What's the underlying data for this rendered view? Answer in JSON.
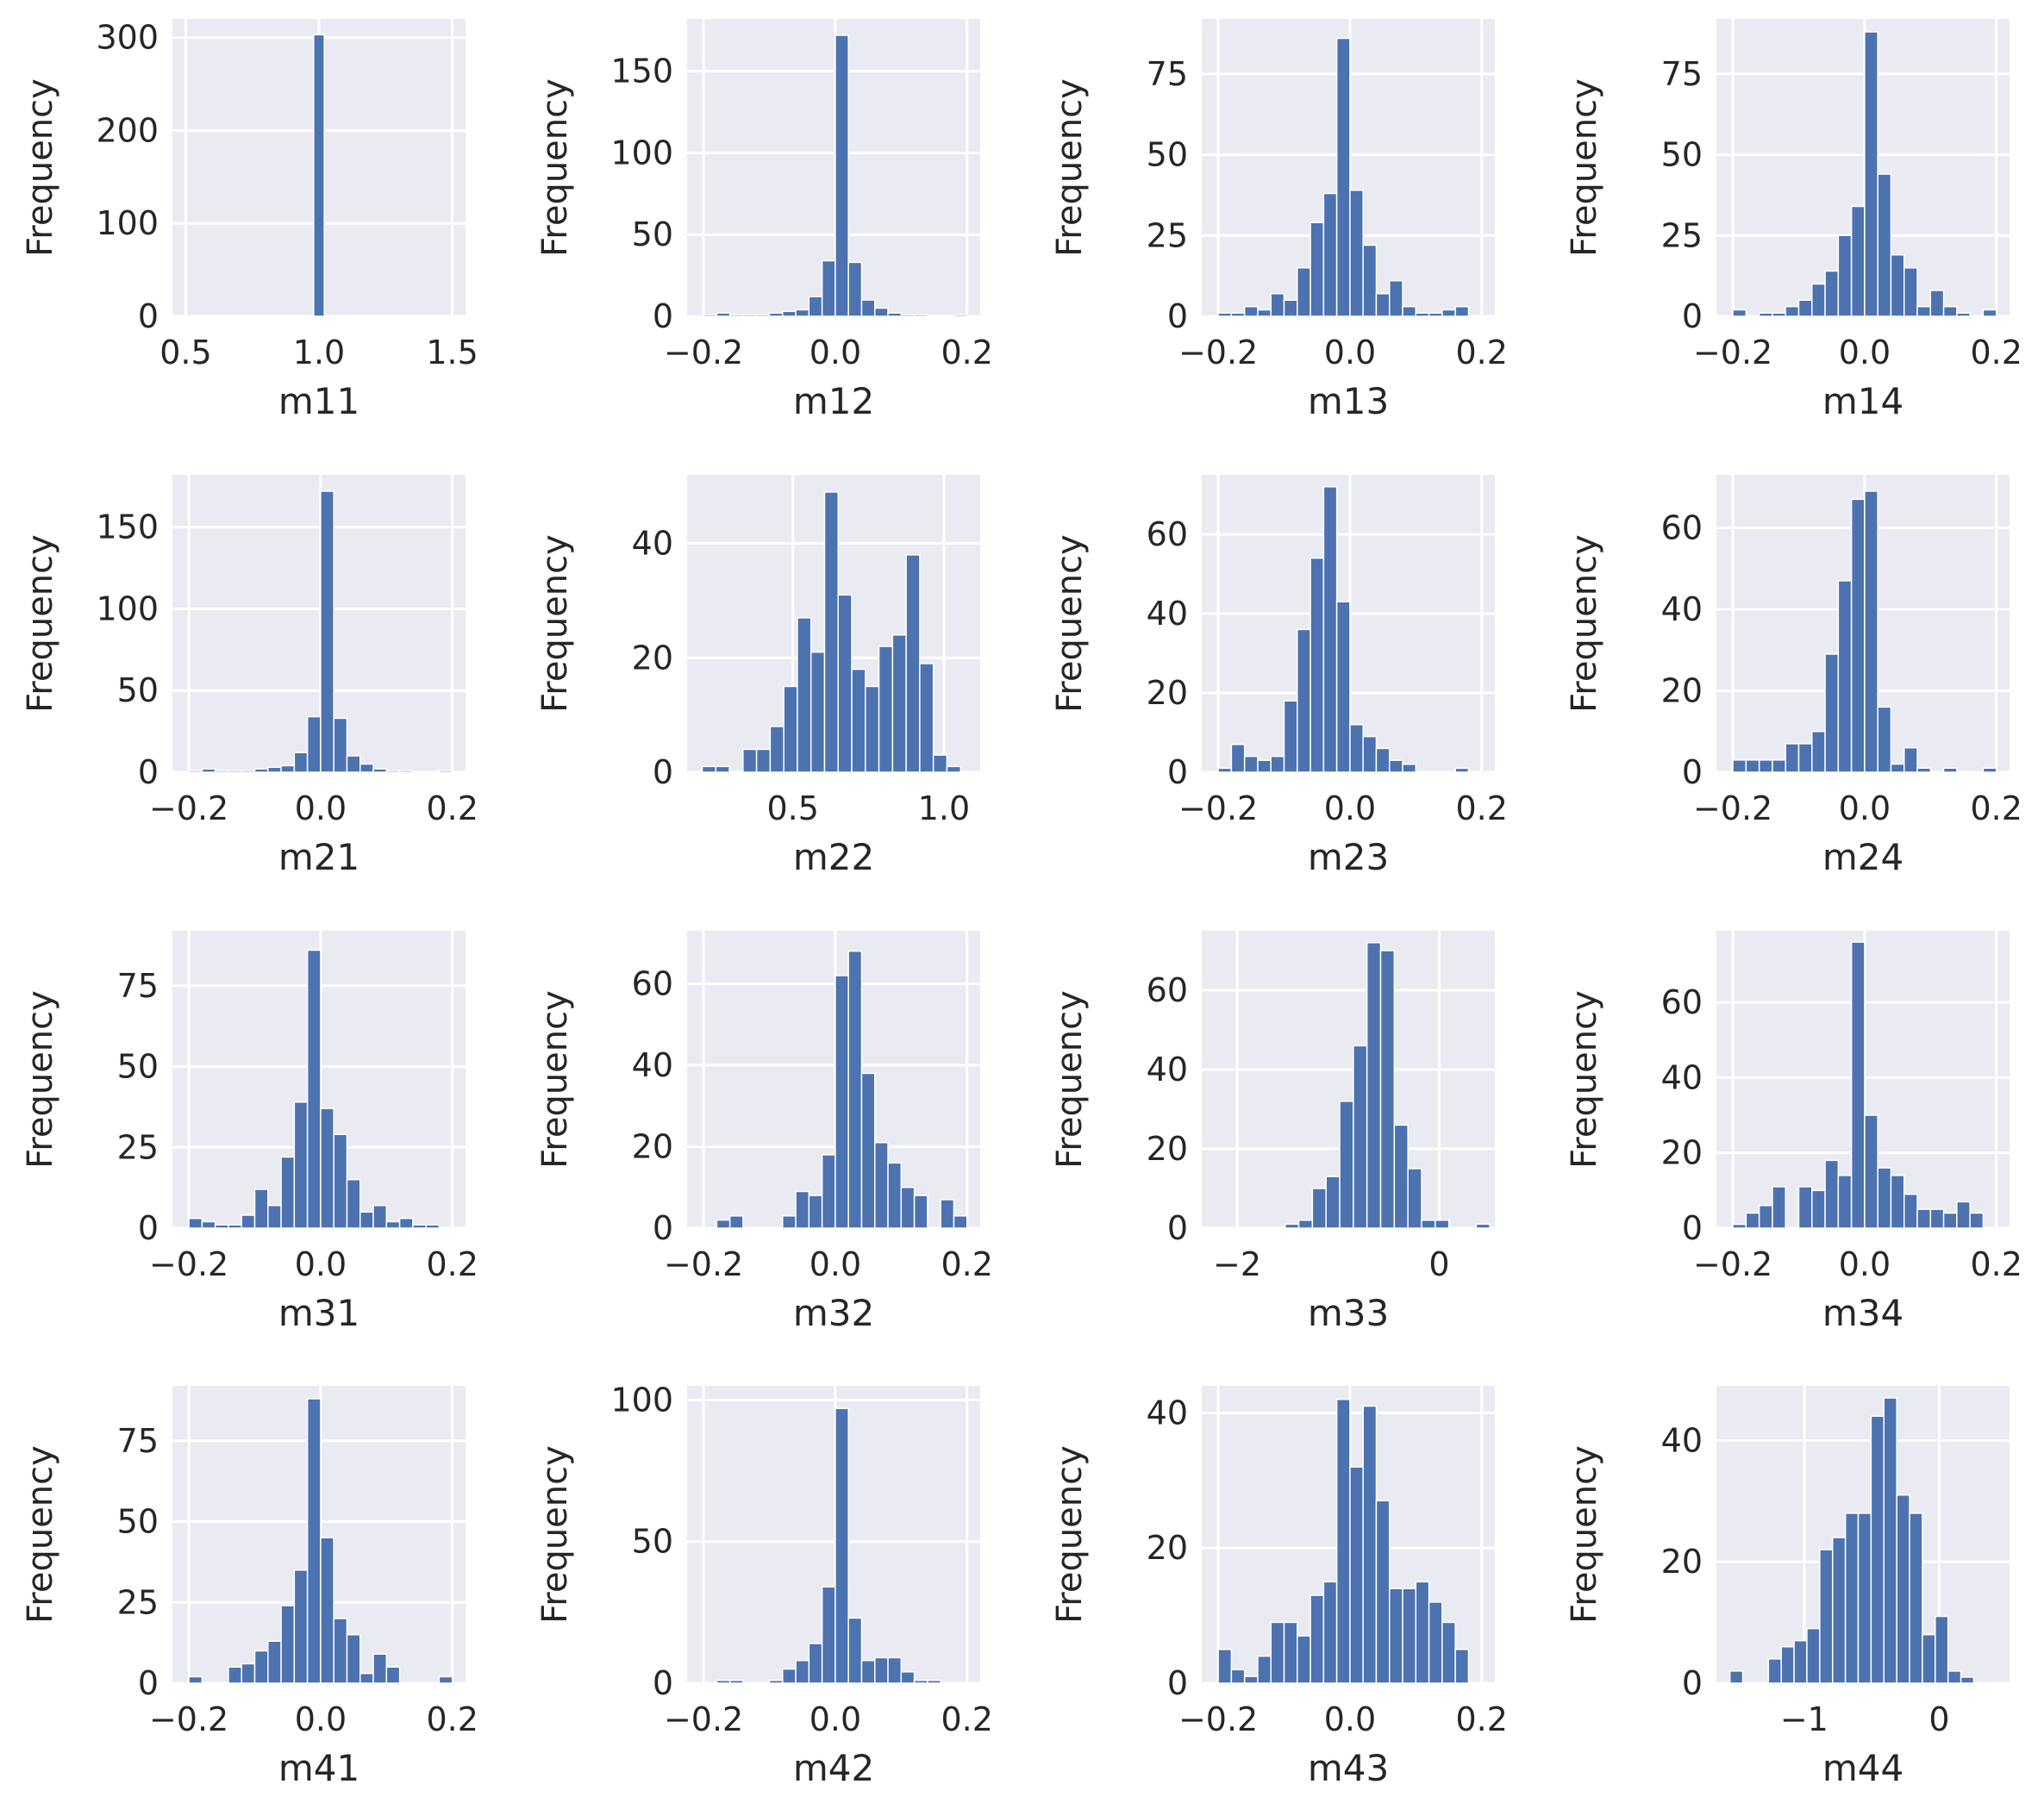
{
  "chart_data": [
    {
      "type": "bar",
      "xlabel": "m11",
      "ylabel": "Frequency",
      "xlim": [
        0.45,
        1.55
      ],
      "ylim": [
        0,
        320
      ],
      "xticks": [
        {
          "v": 0.5,
          "t": "0.5"
        },
        {
          "v": 1.0,
          "t": "1.0"
        },
        {
          "v": 1.5,
          "t": "1.5"
        }
      ],
      "yticks": [
        {
          "v": 0,
          "t": "0"
        },
        {
          "v": 100,
          "t": "100"
        },
        {
          "v": 200,
          "t": "200"
        },
        {
          "v": 300,
          "t": "300"
        }
      ],
      "bin_edges": [
        0.98,
        1.02
      ],
      "values": [
        303
      ]
    },
    {
      "type": "bar",
      "xlabel": "m12",
      "ylabel": "Frequency",
      "xlim": [
        -0.225,
        0.22
      ],
      "ylim": [
        0,
        182
      ],
      "xticks": [
        {
          "v": -0.2,
          "t": "−0.2"
        },
        {
          "v": 0.0,
          "t": "0.0"
        },
        {
          "v": 0.2,
          "t": "0.2"
        }
      ],
      "yticks": [
        {
          "v": 0,
          "t": "0"
        },
        {
          "v": 50,
          "t": "50"
        },
        {
          "v": 100,
          "t": "100"
        },
        {
          "v": 150,
          "t": "150"
        }
      ],
      "bin_edges": [
        -0.2,
        -0.18,
        -0.16,
        -0.14,
        -0.12,
        -0.1,
        -0.08,
        -0.06,
        -0.04,
        -0.02,
        0.0,
        0.02,
        0.04,
        0.06,
        0.08,
        0.1,
        0.12,
        0.14,
        0.16,
        0.18,
        0.2
      ],
      "values": [
        1,
        2,
        1,
        1,
        1,
        2,
        3,
        4,
        12,
        34,
        172,
        33,
        10,
        5,
        2,
        1,
        1,
        0,
        0,
        1
      ]
    },
    {
      "type": "bar",
      "xlabel": "m13",
      "ylabel": "Frequency",
      "xlim": [
        -0.225,
        0.22
      ],
      "ylim": [
        0,
        92
      ],
      "xticks": [
        {
          "v": -0.2,
          "t": "−0.2"
        },
        {
          "v": 0.0,
          "t": "0.0"
        },
        {
          "v": 0.2,
          "t": "0.2"
        }
      ],
      "yticks": [
        {
          "v": 0,
          "t": "0"
        },
        {
          "v": 25,
          "t": "25"
        },
        {
          "v": 50,
          "t": "50"
        },
        {
          "v": 75,
          "t": "75"
        }
      ],
      "bin_edges": [
        -0.2,
        -0.18,
        -0.16,
        -0.14,
        -0.12,
        -0.1,
        -0.08,
        -0.06,
        -0.04,
        -0.02,
        0.0,
        0.02,
        0.04,
        0.06,
        0.08,
        0.1,
        0.12,
        0.14,
        0.16,
        0.18,
        0.2
      ],
      "values": [
        1,
        1,
        3,
        2,
        7,
        5,
        15,
        29,
        38,
        86,
        39,
        22,
        7,
        11,
        3,
        1,
        1,
        2,
        3,
        0
      ]
    },
    {
      "type": "bar",
      "xlabel": "m14",
      "ylabel": "Frequency",
      "xlim": [
        -0.225,
        0.22
      ],
      "ylim": [
        0,
        92
      ],
      "xticks": [
        {
          "v": -0.2,
          "t": "−0.2"
        },
        {
          "v": 0.0,
          "t": "0.0"
        },
        {
          "v": 0.2,
          "t": "0.2"
        }
      ],
      "yticks": [
        {
          "v": 0,
          "t": "0"
        },
        {
          "v": 25,
          "t": "25"
        },
        {
          "v": 50,
          "t": "50"
        },
        {
          "v": 75,
          "t": "75"
        }
      ],
      "bin_edges": [
        -0.2,
        -0.18,
        -0.16,
        -0.14,
        -0.12,
        -0.1,
        -0.08,
        -0.06,
        -0.04,
        -0.02,
        0.0,
        0.02,
        0.04,
        0.06,
        0.08,
        0.1,
        0.12,
        0.14,
        0.16,
        0.18,
        0.2
      ],
      "values": [
        2,
        0,
        1,
        1,
        3,
        5,
        10,
        14,
        25,
        34,
        88,
        44,
        19,
        15,
        3,
        8,
        3,
        1,
        0,
        2
      ]
    },
    {
      "type": "bar",
      "xlabel": "m21",
      "ylabel": "Frequency",
      "xlim": [
        -0.225,
        0.22
      ],
      "ylim": [
        0,
        182
      ],
      "xticks": [
        {
          "v": -0.2,
          "t": "−0.2"
        },
        {
          "v": 0.0,
          "t": "0.0"
        },
        {
          "v": 0.2,
          "t": "0.2"
        }
      ],
      "yticks": [
        {
          "v": 0,
          "t": "0"
        },
        {
          "v": 50,
          "t": "50"
        },
        {
          "v": 100,
          "t": "100"
        },
        {
          "v": 150,
          "t": "150"
        }
      ],
      "bin_edges": [
        -0.2,
        -0.18,
        -0.16,
        -0.14,
        -0.12,
        -0.1,
        -0.08,
        -0.06,
        -0.04,
        -0.02,
        0.0,
        0.02,
        0.04,
        0.06,
        0.08,
        0.1,
        0.12,
        0.14,
        0.16,
        0.18,
        0.2
      ],
      "values": [
        1,
        2,
        1,
        1,
        1,
        2,
        3,
        4,
        12,
        34,
        172,
        33,
        10,
        5,
        2,
        1,
        1,
        0,
        0,
        1
      ]
    },
    {
      "type": "bar",
      "xlabel": "m22",
      "ylabel": "Frequency",
      "xlim": [
        0.15,
        1.12
      ],
      "ylim": [
        0,
        52
      ],
      "xticks": [
        {
          "v": 0.5,
          "t": "0.5"
        },
        {
          "v": 1.0,
          "t": "1.0"
        }
      ],
      "yticks": [
        {
          "v": 0,
          "t": "0"
        },
        {
          "v": 20,
          "t": "20"
        },
        {
          "v": 40,
          "t": "40"
        }
      ],
      "bin_edges": [
        0.2,
        0.245,
        0.29,
        0.335,
        0.38,
        0.425,
        0.47,
        0.515,
        0.56,
        0.605,
        0.65,
        0.695,
        0.74,
        0.785,
        0.83,
        0.875,
        0.92,
        0.965,
        1.01,
        1.055,
        1.1
      ],
      "values": [
        1,
        1,
        0,
        4,
        4,
        8,
        15,
        27,
        21,
        49,
        31,
        18,
        15,
        22,
        24,
        38,
        19,
        3,
        1,
        0
      ]
    },
    {
      "type": "bar",
      "xlabel": "m23",
      "ylabel": "Frequency",
      "xlim": [
        -0.225,
        0.22
      ],
      "ylim": [
        0,
        75
      ],
      "xticks": [
        {
          "v": -0.2,
          "t": "−0.2"
        },
        {
          "v": 0.0,
          "t": "0.0"
        },
        {
          "v": 0.2,
          "t": "0.2"
        }
      ],
      "yticks": [
        {
          "v": 0,
          "t": "0"
        },
        {
          "v": 20,
          "t": "20"
        },
        {
          "v": 40,
          "t": "40"
        },
        {
          "v": 60,
          "t": "60"
        }
      ],
      "bin_edges": [
        -0.2,
        -0.18,
        -0.16,
        -0.14,
        -0.12,
        -0.1,
        -0.08,
        -0.06,
        -0.04,
        -0.02,
        0.0,
        0.02,
        0.04,
        0.06,
        0.08,
        0.1,
        0.12,
        0.14,
        0.16,
        0.18,
        0.2
      ],
      "values": [
        1,
        7,
        4,
        3,
        4,
        18,
        36,
        54,
        72,
        43,
        12,
        9,
        6,
        3,
        2,
        0,
        0,
        0,
        1,
        0
      ]
    },
    {
      "type": "bar",
      "xlabel": "m24",
      "ylabel": "Frequency",
      "xlim": [
        -0.225,
        0.22
      ],
      "ylim": [
        0,
        73
      ],
      "xticks": [
        {
          "v": -0.2,
          "t": "−0.2"
        },
        {
          "v": 0.0,
          "t": "0.0"
        },
        {
          "v": 0.2,
          "t": "0.2"
        }
      ],
      "yticks": [
        {
          "v": 0,
          "t": "0"
        },
        {
          "v": 20,
          "t": "20"
        },
        {
          "v": 40,
          "t": "40"
        },
        {
          "v": 60,
          "t": "60"
        }
      ],
      "bin_edges": [
        -0.2,
        -0.18,
        -0.16,
        -0.14,
        -0.12,
        -0.1,
        -0.08,
        -0.06,
        -0.04,
        -0.02,
        0.0,
        0.02,
        0.04,
        0.06,
        0.08,
        0.1,
        0.12,
        0.14,
        0.16,
        0.18,
        0.2
      ],
      "values": [
        3,
        3,
        3,
        3,
        7,
        7,
        10,
        29,
        47,
        67,
        69,
        16,
        2,
        6,
        1,
        0,
        1,
        0,
        0,
        1
      ]
    },
    {
      "type": "bar",
      "xlabel": "m31",
      "ylabel": "Frequency",
      "xlim": [
        -0.225,
        0.22
      ],
      "ylim": [
        0,
        92
      ],
      "xticks": [
        {
          "v": -0.2,
          "t": "−0.2"
        },
        {
          "v": 0.0,
          "t": "0.0"
        },
        {
          "v": 0.2,
          "t": "0.2"
        }
      ],
      "yticks": [
        {
          "v": 0,
          "t": "0"
        },
        {
          "v": 25,
          "t": "25"
        },
        {
          "v": 50,
          "t": "50"
        },
        {
          "v": 75,
          "t": "75"
        }
      ],
      "bin_edges": [
        -0.2,
        -0.18,
        -0.16,
        -0.14,
        -0.12,
        -0.1,
        -0.08,
        -0.06,
        -0.04,
        -0.02,
        0.0,
        0.02,
        0.04,
        0.06,
        0.08,
        0.1,
        0.12,
        0.14,
        0.16,
        0.18,
        0.2
      ],
      "values": [
        3,
        2,
        1,
        1,
        4,
        12,
        7,
        22,
        39,
        86,
        37,
        29,
        15,
        5,
        7,
        2,
        3,
        1,
        1,
        0
      ]
    },
    {
      "type": "bar",
      "xlabel": "m32",
      "ylabel": "Frequency",
      "xlim": [
        -0.225,
        0.22
      ],
      "ylim": [
        0,
        73
      ],
      "xticks": [
        {
          "v": -0.2,
          "t": "−0.2"
        },
        {
          "v": 0.0,
          "t": "0.0"
        },
        {
          "v": 0.2,
          "t": "0.2"
        }
      ],
      "yticks": [
        {
          "v": 0,
          "t": "0"
        },
        {
          "v": 20,
          "t": "20"
        },
        {
          "v": 40,
          "t": "40"
        },
        {
          "v": 60,
          "t": "60"
        }
      ],
      "bin_edges": [
        -0.2,
        -0.18,
        -0.16,
        -0.14,
        -0.12,
        -0.1,
        -0.08,
        -0.06,
        -0.04,
        -0.02,
        0.0,
        0.02,
        0.04,
        0.06,
        0.08,
        0.1,
        0.12,
        0.14,
        0.16,
        0.18,
        0.2
      ],
      "values": [
        0,
        2,
        3,
        0,
        0,
        0,
        3,
        9,
        8,
        18,
        62,
        68,
        38,
        21,
        16,
        10,
        8,
        0,
        7,
        3
      ]
    },
    {
      "type": "bar",
      "xlabel": "m33",
      "ylabel": "Frequency",
      "xlim": [
        -2.35,
        0.55
      ],
      "ylim": [
        0,
        75
      ],
      "xticks": [
        {
          "v": -2,
          "t": "−2"
        },
        {
          "v": 0,
          "t": "0"
        }
      ],
      "yticks": [
        {
          "v": 0,
          "t": "0"
        },
        {
          "v": 20,
          "t": "20"
        },
        {
          "v": 40,
          "t": "40"
        },
        {
          "v": 60,
          "t": "60"
        }
      ],
      "bin_edges": [
        -2.2,
        -2.065,
        -1.93,
        -1.795,
        -1.66,
        -1.525,
        -1.39,
        -1.255,
        -1.12,
        -0.985,
        -0.85,
        -0.715,
        -0.58,
        -0.445,
        -0.31,
        -0.175,
        -0.04,
        0.095,
        0.23,
        0.365,
        0.5
      ],
      "values": [
        0,
        0,
        0,
        0,
        0,
        1,
        2,
        10,
        13,
        32,
        46,
        72,
        70,
        26,
        15,
        2,
        2,
        0,
        0,
        1
      ]
    },
    {
      "type": "bar",
      "xlabel": "m34",
      "ylabel": "Frequency",
      "xlim": [
        -0.225,
        0.22
      ],
      "ylim": [
        0,
        79
      ],
      "xticks": [
        {
          "v": -0.2,
          "t": "−0.2"
        },
        {
          "v": 0.0,
          "t": "0.0"
        },
        {
          "v": 0.2,
          "t": "0.2"
        }
      ],
      "yticks": [
        {
          "v": 0,
          "t": "0"
        },
        {
          "v": 20,
          "t": "20"
        },
        {
          "v": 40,
          "t": "40"
        },
        {
          "v": 60,
          "t": "60"
        }
      ],
      "bin_edges": [
        -0.2,
        -0.18,
        -0.16,
        -0.14,
        -0.12,
        -0.1,
        -0.08,
        -0.06,
        -0.04,
        -0.02,
        0.0,
        0.02,
        0.04,
        0.06,
        0.08,
        0.1,
        0.12,
        0.14,
        0.16,
        0.18,
        0.2
      ],
      "values": [
        1,
        4,
        6,
        11,
        0,
        11,
        10,
        18,
        14,
        76,
        30,
        16,
        14,
        9,
        5,
        5,
        4,
        7,
        4,
        0
      ]
    },
    {
      "type": "bar",
      "xlabel": "m41",
      "ylabel": "Frequency",
      "xlim": [
        -0.225,
        0.22
      ],
      "ylim": [
        0,
        92
      ],
      "xticks": [
        {
          "v": -0.2,
          "t": "−0.2"
        },
        {
          "v": 0.0,
          "t": "0.0"
        },
        {
          "v": 0.2,
          "t": "0.2"
        }
      ],
      "yticks": [
        {
          "v": 0,
          "t": "0"
        },
        {
          "v": 25,
          "t": "25"
        },
        {
          "v": 50,
          "t": "50"
        },
        {
          "v": 75,
          "t": "75"
        }
      ],
      "bin_edges": [
        -0.2,
        -0.18,
        -0.16,
        -0.14,
        -0.12,
        -0.1,
        -0.08,
        -0.06,
        -0.04,
        -0.02,
        0.0,
        0.02,
        0.04,
        0.06,
        0.08,
        0.1,
        0.12,
        0.14,
        0.16,
        0.18,
        0.2
      ],
      "values": [
        2,
        0,
        0,
        5,
        6,
        10,
        13,
        24,
        35,
        88,
        45,
        20,
        15,
        3,
        9,
        5,
        0,
        0,
        0,
        2
      ]
    },
    {
      "type": "bar",
      "xlabel": "m42",
      "ylabel": "Frequency",
      "xlim": [
        -0.225,
        0.22
      ],
      "ylim": [
        0,
        105
      ],
      "xticks": [
        {
          "v": -0.2,
          "t": "−0.2"
        },
        {
          "v": 0.0,
          "t": "0.0"
        },
        {
          "v": 0.2,
          "t": "0.2"
        }
      ],
      "yticks": [
        {
          "v": 0,
          "t": "0"
        },
        {
          "v": 50,
          "t": "50"
        },
        {
          "v": 100,
          "t": "100"
        }
      ],
      "bin_edges": [
        -0.2,
        -0.18,
        -0.16,
        -0.14,
        -0.12,
        -0.1,
        -0.08,
        -0.06,
        -0.04,
        -0.02,
        0.0,
        0.02,
        0.04,
        0.06,
        0.08,
        0.1,
        0.12,
        0.14,
        0.16,
        0.18,
        0.2
      ],
      "values": [
        0,
        1,
        1,
        0,
        0,
        1,
        5,
        8,
        14,
        34,
        97,
        23,
        8,
        9,
        9,
        4,
        1,
        1,
        0,
        0
      ]
    },
    {
      "type": "bar",
      "xlabel": "m43",
      "ylabel": "Frequency",
      "xlim": [
        -0.225,
        0.22
      ],
      "ylim": [
        0,
        44
      ],
      "xticks": [
        {
          "v": -0.2,
          "t": "−0.2"
        },
        {
          "v": 0.0,
          "t": "0.0"
        },
        {
          "v": 0.2,
          "t": "0.2"
        }
      ],
      "yticks": [
        {
          "v": 0,
          "t": "0"
        },
        {
          "v": 20,
          "t": "20"
        },
        {
          "v": 40,
          "t": "40"
        }
      ],
      "bin_edges": [
        -0.2,
        -0.18,
        -0.16,
        -0.14,
        -0.12,
        -0.1,
        -0.08,
        -0.06,
        -0.04,
        -0.02,
        0.0,
        0.02,
        0.04,
        0.06,
        0.08,
        0.1,
        0.12,
        0.14,
        0.16,
        0.18,
        0.2
      ],
      "values": [
        5,
        2,
        1,
        4,
        9,
        9,
        7,
        13,
        15,
        42,
        32,
        41,
        27,
        14,
        14,
        15,
        12,
        9,
        5,
        0
      ]
    },
    {
      "type": "bar",
      "xlabel": "m44",
      "ylabel": "Frequency",
      "xlim": [
        -1.65,
        0.52
      ],
      "ylim": [
        0,
        49
      ],
      "xticks": [
        {
          "v": -1,
          "t": "−1"
        },
        {
          "v": 0,
          "t": "0"
        }
      ],
      "yticks": [
        {
          "v": 0,
          "t": "0"
        },
        {
          "v": 20,
          "t": "20"
        },
        {
          "v": 40,
          "t": "40"
        }
      ],
      "bin_edges": [
        -1.55,
        -1.455,
        -1.36,
        -1.265,
        -1.17,
        -1.075,
        -0.98,
        -0.885,
        -0.79,
        -0.695,
        -0.6,
        -0.505,
        -0.41,
        -0.315,
        -0.22,
        -0.125,
        -0.03,
        0.065,
        0.16,
        0.255,
        0.35
      ],
      "values": [
        2,
        0,
        0,
        4,
        6,
        7,
        9,
        22,
        24,
        28,
        28,
        44,
        47,
        31,
        28,
        8,
        11,
        2,
        1,
        0
      ]
    }
  ]
}
